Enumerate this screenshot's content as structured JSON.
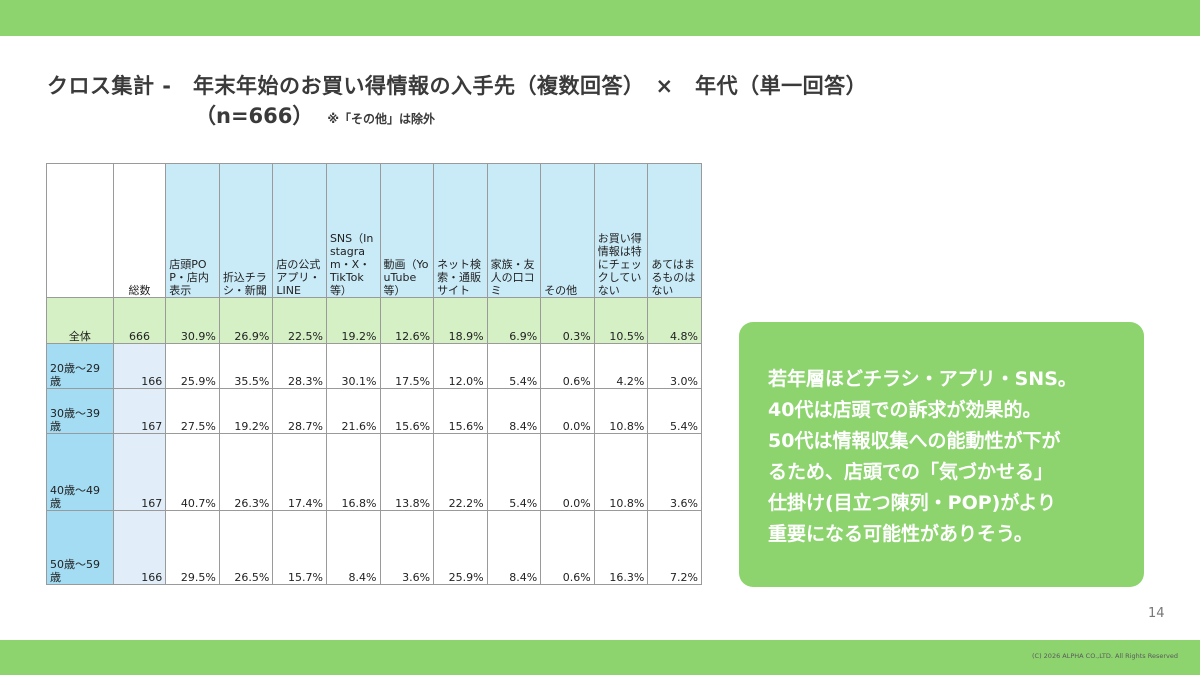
{
  "header": {
    "title": "クロス集計 -　年末年始のお買い得情報の入手先（複数回答）　×　年代（単一回答）",
    "sample": "（n=666）",
    "note": "※「その他」は除外"
  },
  "table": {
    "total_header": "総数",
    "columns": [
      "店頭POP・店内表示",
      "折込チラシ・新聞",
      "店の公式アプリ・LINE",
      "SNS（Instagram・X・TikTok等）",
      "動画（YouTube等）",
      "ネット検索・通販サイト",
      "家族・友人の口コミ",
      "その他",
      "お買い得情報は特にチェックしていない",
      "あてはまるものはない"
    ],
    "total_row": {
      "label": "全体",
      "n": "666",
      "values": [
        "30.9%",
        "26.9%",
        "22.5%",
        "19.2%",
        "12.6%",
        "18.9%",
        "6.9%",
        "0.3%",
        "10.5%",
        "4.8%"
      ]
    },
    "rows": [
      {
        "label": "20歳～29歳",
        "n": "166",
        "values": [
          "25.9%",
          "35.5%",
          "28.3%",
          "30.1%",
          "17.5%",
          "12.0%",
          "5.4%",
          "0.6%",
          "4.2%",
          "3.0%"
        ]
      },
      {
        "label": "30歳～39歳",
        "n": "167",
        "values": [
          "27.5%",
          "19.2%",
          "28.7%",
          "21.6%",
          "15.6%",
          "15.6%",
          "8.4%",
          "0.0%",
          "10.8%",
          "5.4%"
        ]
      },
      {
        "label": "40歳～49歳",
        "n": "167",
        "values": [
          "40.7%",
          "26.3%",
          "17.4%",
          "16.8%",
          "13.8%",
          "22.2%",
          "5.4%",
          "0.0%",
          "10.8%",
          "3.6%"
        ]
      },
      {
        "label": "50歳～59歳",
        "n": "166",
        "values": [
          "29.5%",
          "26.5%",
          "15.7%",
          "8.4%",
          "3.6%",
          "25.9%",
          "8.4%",
          "0.6%",
          "16.3%",
          "7.2%"
        ]
      }
    ]
  },
  "callout": {
    "lines": [
      "若年層ほどチラシ・アプリ・SNS。",
      "40代は店頭での訴求が効果的。",
      "50代は情報収集への能動性が下が",
      "るため、店頭での「気づかせる」",
      "仕掛け(目立つ陳列・POP)がより",
      "重要になる可能性がありそう。"
    ]
  },
  "footer": {
    "page_number": "14",
    "copyright": "(C) 2026 ALPHA CO.,LTD. All Rights Reserved"
  },
  "colors": {
    "accent_green": "#8dd46f",
    "header_blue": "#c9eaf7",
    "age_blue": "#a3dcf3",
    "count_blue": "#e1eefa",
    "total_green": "#d4f0c4"
  }
}
